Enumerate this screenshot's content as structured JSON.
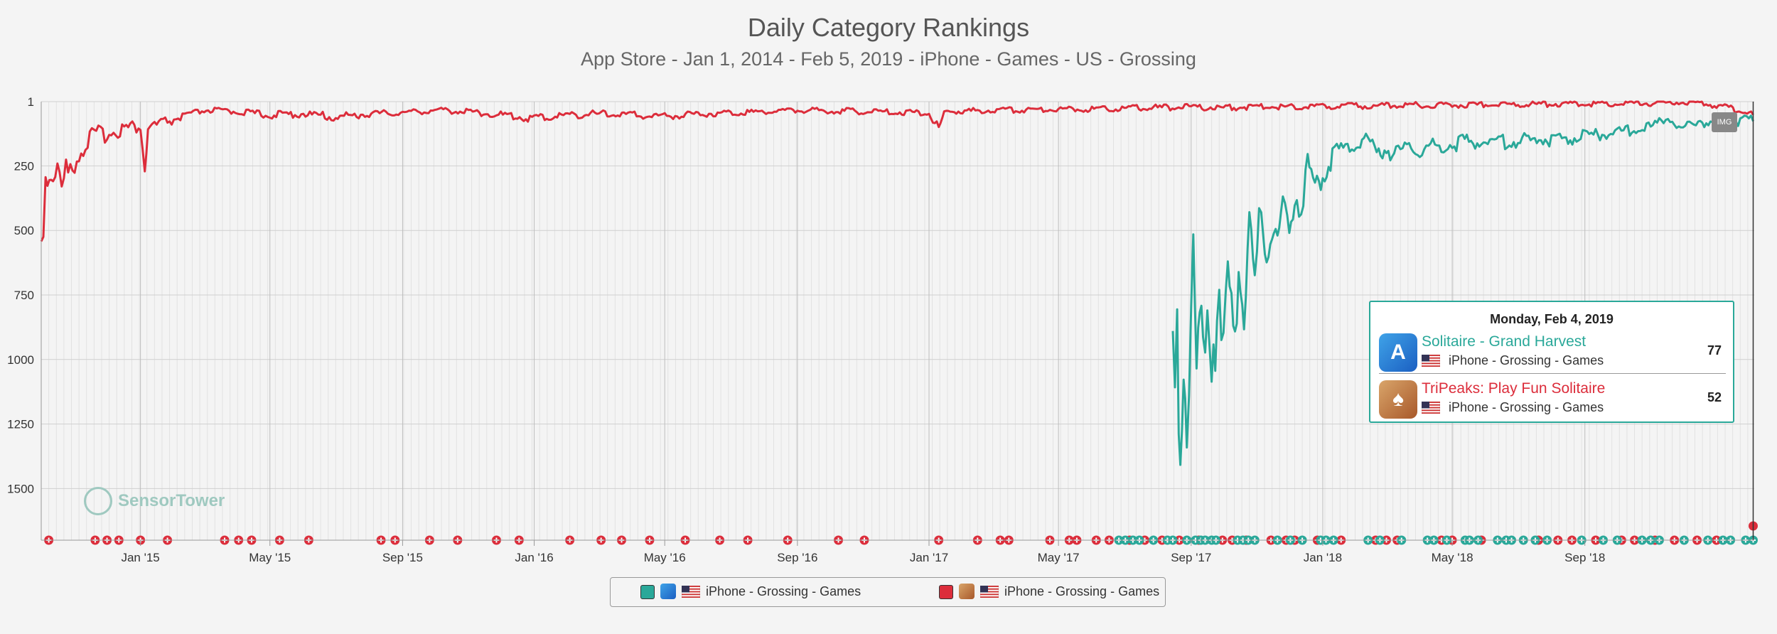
{
  "chart_data": {
    "type": "line",
    "title": "Daily Category Rankings",
    "subtitle": "App Store - Jan 1, 2014 - Feb 5, 2019 - iPhone - Games - US - Grossing",
    "y_reversed": true,
    "ylim": [
      1,
      1700
    ],
    "yticks": [
      "1",
      "250",
      "500",
      "750",
      "1000",
      "1250",
      "1500"
    ],
    "ytick_values": [
      1,
      250,
      500,
      750,
      1000,
      1250,
      1500
    ],
    "xlim": [
      "2014-10-01",
      "2019-02-05"
    ],
    "xticks": [
      {
        "label": "Jan '15",
        "date": "2015-01-01"
      },
      {
        "label": "May '15",
        "date": "2015-05-01"
      },
      {
        "label": "Sep '15",
        "date": "2015-09-01"
      },
      {
        "label": "Jan '16",
        "date": "2016-01-01"
      },
      {
        "label": "May '16",
        "date": "2016-05-01"
      },
      {
        "label": "Sep '16",
        "date": "2016-09-01"
      },
      {
        "label": "Jan '17",
        "date": "2017-01-01"
      },
      {
        "label": "May '17",
        "date": "2017-05-01"
      },
      {
        "label": "Sep '17",
        "date": "2017-09-01"
      },
      {
        "label": "Jan '18",
        "date": "2018-01-01"
      },
      {
        "label": "May '18",
        "date": "2018-05-01"
      },
      {
        "label": "Sep '18",
        "date": "2018-09-01"
      }
    ],
    "grid": true,
    "legend_position": "bottom-center",
    "series": [
      {
        "name": "TriPeaks: Play Fun Solitaire",
        "color": "#dc2d3b",
        "points": [
          [
            "2014-10-01",
            620
          ],
          [
            "2014-10-05",
            330
          ],
          [
            "2014-10-12",
            300
          ],
          [
            "2014-10-20",
            380
          ],
          [
            "2014-11-01",
            250
          ],
          [
            "2014-11-15",
            160
          ],
          [
            "2014-12-01",
            140
          ],
          [
            "2014-12-15",
            120
          ],
          [
            "2015-01-01",
            110
          ],
          [
            "2015-01-05",
            300
          ],
          [
            "2015-01-08",
            120
          ],
          [
            "2015-02-01",
            80
          ],
          [
            "2015-03-01",
            40
          ],
          [
            "2015-04-01",
            45
          ],
          [
            "2015-05-01",
            60
          ],
          [
            "2015-06-01",
            55
          ],
          [
            "2015-07-01",
            70
          ],
          [
            "2015-08-01",
            55
          ],
          [
            "2015-09-01",
            50
          ],
          [
            "2015-10-01",
            40
          ],
          [
            "2015-11-01",
            45
          ],
          [
            "2015-12-01",
            60
          ],
          [
            "2016-01-01",
            75
          ],
          [
            "2016-02-01",
            60
          ],
          [
            "2016-03-01",
            55
          ],
          [
            "2016-04-01",
            60
          ],
          [
            "2016-05-01",
            65
          ],
          [
            "2016-06-01",
            55
          ],
          [
            "2016-07-01",
            50
          ],
          [
            "2016-08-01",
            45
          ],
          [
            "2016-09-01",
            40
          ],
          [
            "2016-10-01",
            42
          ],
          [
            "2016-11-01",
            45
          ],
          [
            "2016-12-01",
            48
          ],
          [
            "2017-01-01",
            50
          ],
          [
            "2017-01-10",
            140
          ],
          [
            "2017-01-15",
            45
          ],
          [
            "2017-02-01",
            45
          ],
          [
            "2017-03-01",
            40
          ],
          [
            "2017-04-01",
            38
          ],
          [
            "2017-05-01",
            35
          ],
          [
            "2017-06-01",
            35
          ],
          [
            "2017-07-01",
            32
          ],
          [
            "2017-08-01",
            30
          ],
          [
            "2017-09-01",
            28
          ],
          [
            "2017-10-01",
            30
          ],
          [
            "2017-11-01",
            27
          ],
          [
            "2017-12-01",
            26
          ],
          [
            "2018-01-01",
            25
          ],
          [
            "2018-02-01",
            24
          ],
          [
            "2018-03-01",
            22
          ],
          [
            "2018-04-01",
            20
          ],
          [
            "2018-05-01",
            20
          ],
          [
            "2018-06-01",
            18
          ],
          [
            "2018-07-01",
            17
          ],
          [
            "2018-08-01",
            16
          ],
          [
            "2018-09-01",
            15
          ],
          [
            "2018-10-01",
            14
          ],
          [
            "2018-11-01",
            12
          ],
          [
            "2018-12-01",
            10
          ],
          [
            "2019-01-01",
            20
          ],
          [
            "2019-01-20",
            40
          ],
          [
            "2019-02-04",
            52
          ]
        ]
      },
      {
        "name": "Solitaire - Grand Harvest",
        "color": "#2aa899",
        "points": [
          [
            "2017-08-15",
            1200
          ],
          [
            "2017-08-17",
            1450
          ],
          [
            "2017-08-19",
            1100
          ],
          [
            "2017-08-22",
            1380
          ],
          [
            "2017-08-25",
            1000
          ],
          [
            "2017-08-28",
            1350
          ],
          [
            "2017-09-01",
            1050
          ],
          [
            "2017-09-03",
            600
          ],
          [
            "2017-09-06",
            1300
          ],
          [
            "2017-09-09",
            900
          ],
          [
            "2017-09-12",
            1200
          ],
          [
            "2017-09-16",
            800
          ],
          [
            "2017-09-20",
            1100
          ],
          [
            "2017-09-25",
            900
          ],
          [
            "2017-10-01",
            1150
          ],
          [
            "2017-10-05",
            800
          ],
          [
            "2017-10-10",
            1050
          ],
          [
            "2017-10-15",
            700
          ],
          [
            "2017-10-20",
            900
          ],
          [
            "2017-10-25",
            550
          ],
          [
            "2017-10-30",
            780
          ],
          [
            "2017-11-05",
            450
          ],
          [
            "2017-11-10",
            650
          ],
          [
            "2017-11-15",
            500
          ],
          [
            "2017-11-20",
            620
          ],
          [
            "2017-11-25",
            450
          ],
          [
            "2017-12-01",
            520
          ],
          [
            "2017-12-06",
            380
          ],
          [
            "2017-12-12",
            480
          ],
          [
            "2017-12-18",
            250
          ],
          [
            "2017-12-23",
            380
          ],
          [
            "2018-01-01",
            300
          ],
          [
            "2018-01-10",
            240
          ],
          [
            "2018-01-20",
            200
          ],
          [
            "2018-02-01",
            180
          ],
          [
            "2018-02-10",
            150
          ],
          [
            "2018-02-20",
            220
          ],
          [
            "2018-03-01",
            200
          ],
          [
            "2018-03-10",
            230
          ],
          [
            "2018-03-20",
            190
          ],
          [
            "2018-04-01",
            200
          ],
          [
            "2018-05-01",
            180
          ],
          [
            "2018-06-01",
            170
          ],
          [
            "2018-07-01",
            170
          ],
          [
            "2018-08-01",
            160
          ],
          [
            "2018-09-01",
            150
          ],
          [
            "2018-10-01",
            130
          ],
          [
            "2018-11-01",
            110
          ],
          [
            "2018-11-15",
            70
          ],
          [
            "2018-12-01",
            120
          ],
          [
            "2018-12-15",
            80
          ],
          [
            "2019-01-01",
            110
          ],
          [
            "2019-01-15",
            90
          ],
          [
            "2019-02-04",
            77
          ]
        ]
      }
    ],
    "events": {
      "red_dates": [
        "2014-10-08",
        "2014-11-20",
        "2014-12-01",
        "2014-12-12",
        "2015-01-01",
        "2015-01-26",
        "2015-03-20",
        "2015-04-02",
        "2015-04-14",
        "2015-05-10",
        "2015-06-06",
        "2015-08-12",
        "2015-08-25",
        "2015-09-26",
        "2015-10-22",
        "2015-11-27",
        "2015-12-18",
        "2016-02-03",
        "2016-03-03",
        "2016-03-22",
        "2016-04-17",
        "2016-05-20",
        "2016-06-21",
        "2016-07-17",
        "2016-08-23",
        "2016-10-09",
        "2016-11-02",
        "2017-01-10",
        "2017-02-15",
        "2017-03-08",
        "2017-03-16",
        "2017-04-23",
        "2017-05-11",
        "2017-05-18",
        "2017-06-05",
        "2017-06-17",
        "2017-07-06",
        "2017-07-20",
        "2017-08-05",
        "2017-08-21",
        "2017-09-08",
        "2017-09-30",
        "2017-10-09",
        "2017-10-22",
        "2017-11-14",
        "2017-11-28",
        "2017-12-06",
        "2017-12-27",
        "2018-01-18",
        "2018-02-19",
        "2018-03-01",
        "2018-03-11",
        "2018-04-21",
        "2018-05-01",
        "2018-05-28",
        "2018-07-20",
        "2018-08-07",
        "2018-08-20",
        "2018-09-11",
        "2018-10-05",
        "2018-10-17",
        "2018-11-05",
        "2018-11-23",
        "2018-12-14",
        "2019-01-01"
      ],
      "teal_dates": [
        "2017-06-26",
        "2017-07-02",
        "2017-07-09",
        "2017-07-15",
        "2017-07-28",
        "2017-08-10",
        "2017-08-15",
        "2017-08-28",
        "2017-09-05",
        "2017-09-10",
        "2017-09-14",
        "2017-09-20",
        "2017-09-24",
        "2017-10-14",
        "2017-10-19",
        "2017-10-24",
        "2017-10-30",
        "2017-11-20",
        "2017-12-02",
        "2017-12-13",
        "2017-12-30",
        "2018-01-04",
        "2018-01-11",
        "2018-02-12",
        "2018-02-23",
        "2018-03-15",
        "2018-04-08",
        "2018-04-14",
        "2018-04-26",
        "2018-05-13",
        "2018-05-17",
        "2018-05-25",
        "2018-06-12",
        "2018-06-20",
        "2018-06-25",
        "2018-07-06",
        "2018-07-17",
        "2018-07-28",
        "2018-08-29",
        "2018-09-18",
        "2018-10-01",
        "2018-10-24",
        "2018-11-01",
        "2018-11-09",
        "2018-12-02",
        "2018-12-24",
        "2019-01-07",
        "2019-01-14",
        "2019-01-28",
        "2019-02-04"
      ]
    },
    "hover_date": "2019-02-04"
  },
  "tooltip": {
    "date": "Monday, Feb 4, 2019",
    "rows": [
      {
        "app": "Solitaire - Grand Harvest",
        "meta": "iPhone - Grossing - Games",
        "rank": "77",
        "icon": "solitaire-icon"
      },
      {
        "app": "TriPeaks: Play Fun Solitaire",
        "meta": "iPhone - Grossing - Games",
        "rank": "52",
        "icon": "tripeaks-icon"
      }
    ]
  },
  "legend": {
    "items": [
      {
        "label": "iPhone - Grossing - Games",
        "color": "#2aa899"
      },
      {
        "label": "iPhone - Grossing - Games",
        "color": "#dc2d3b"
      }
    ]
  },
  "watermark": {
    "text": "SensorTower"
  },
  "img_badge": "IMG",
  "colors": {
    "teal": "#2aa899",
    "red": "#dc2d3b",
    "grid": "#cfcfcf",
    "background": "#f4f4f4"
  }
}
